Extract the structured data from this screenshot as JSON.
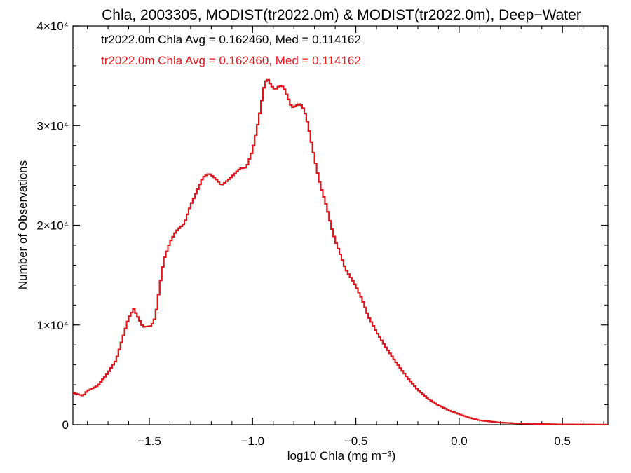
{
  "chart_data": {
    "type": "step-line",
    "title": "Chla, 2003305, MODIST(tr2022.0m) & MODIST(tr2022.0m), Deep−Water",
    "xlabel": "log10 Chla (mg m⁻³)",
    "ylabel": "Number of Observations",
    "xlim": [
      -1.87,
      0.72
    ],
    "ylim": [
      0,
      40000
    ],
    "x_ticks": [
      {
        "value": -1.5,
        "label": "−1.5"
      },
      {
        "value": -1.0,
        "label": "−1.0"
      },
      {
        "value": -0.5,
        "label": "−0.5"
      },
      {
        "value": 0.0,
        "label": "0.0"
      },
      {
        "value": 0.5,
        "label": "0.5"
      }
    ],
    "y_ticks": [
      {
        "value": 0,
        "label": "0"
      },
      {
        "value": 10000,
        "label": "1×10⁴"
      },
      {
        "value": 20000,
        "label": "2×10⁴"
      },
      {
        "value": 30000,
        "label": "3×10⁴"
      },
      {
        "value": 40000,
        "label": "4×10⁴"
      }
    ],
    "grid": false,
    "annotations": [
      {
        "text": "tr2022.0m Chla Avg = 0.162460, Med = 0.114162",
        "color": "#000000"
      },
      {
        "text": "tr2022.0m Chla Avg = 0.162460, Med = 0.114162",
        "color": "#e8141b"
      }
    ],
    "control_points": [
      [
        -1.87,
        3200
      ],
      [
        -1.82,
        2900
      ],
      [
        -1.8,
        3400
      ],
      [
        -1.75,
        3900
      ],
      [
        -1.7,
        5200
      ],
      [
        -1.66,
        6500
      ],
      [
        -1.63,
        8600
      ],
      [
        -1.6,
        10700
      ],
      [
        -1.575,
        11600
      ],
      [
        -1.56,
        11000
      ],
      [
        -1.53,
        9800
      ],
      [
        -1.49,
        9900
      ],
      [
        -1.47,
        10800
      ],
      [
        -1.45,
        13800
      ],
      [
        -1.43,
        16500
      ],
      [
        -1.4,
        18300
      ],
      [
        -1.37,
        19400
      ],
      [
        -1.33,
        20200
      ],
      [
        -1.3,
        22000
      ],
      [
        -1.27,
        23400
      ],
      [
        -1.24,
        24800
      ],
      [
        -1.21,
        25200
      ],
      [
        -1.18,
        24700
      ],
      [
        -1.15,
        24000
      ],
      [
        -1.12,
        24500
      ],
      [
        -1.09,
        25100
      ],
      [
        -1.06,
        25700
      ],
      [
        -1.03,
        25800
      ],
      [
        -1.0,
        27500
      ],
      [
        -0.97,
        30600
      ],
      [
        -0.945,
        33800
      ],
      [
        -0.93,
        34800
      ],
      [
        -0.91,
        34000
      ],
      [
        -0.89,
        33600
      ],
      [
        -0.87,
        34000
      ],
      [
        -0.85,
        33900
      ],
      [
        -0.83,
        32900
      ],
      [
        -0.81,
        31800
      ],
      [
        -0.79,
        32000
      ],
      [
        -0.77,
        32200
      ],
      [
        -0.75,
        31600
      ],
      [
        -0.73,
        30000
      ],
      [
        -0.71,
        27800
      ],
      [
        -0.69,
        25700
      ],
      [
        -0.67,
        23900
      ],
      [
        -0.64,
        21800
      ],
      [
        -0.62,
        20000
      ],
      [
        -0.6,
        18500
      ],
      [
        -0.57,
        16800
      ],
      [
        -0.55,
        15600
      ],
      [
        -0.52,
        14600
      ],
      [
        -0.5,
        13900
      ],
      [
        -0.47,
        12600
      ],
      [
        -0.44,
        10900
      ],
      [
        -0.4,
        9300
      ],
      [
        -0.35,
        7600
      ],
      [
        -0.3,
        6100
      ],
      [
        -0.25,
        4700
      ],
      [
        -0.2,
        3500
      ],
      [
        -0.15,
        2600
      ],
      [
        -0.1,
        1950
      ],
      [
        -0.05,
        1450
      ],
      [
        0.0,
        1050
      ],
      [
        0.05,
        700
      ],
      [
        0.1,
        430
      ],
      [
        0.2,
        210
      ],
      [
        0.3,
        110
      ],
      [
        0.4,
        60
      ],
      [
        0.5,
        30
      ],
      [
        0.6,
        15
      ],
      [
        0.72,
        10
      ]
    ],
    "bin_width": 0.01,
    "series": [
      {
        "color": "#000000",
        "data_key": "control_points"
      },
      {
        "color": "#e8141b",
        "data_key": "control_points"
      }
    ]
  }
}
